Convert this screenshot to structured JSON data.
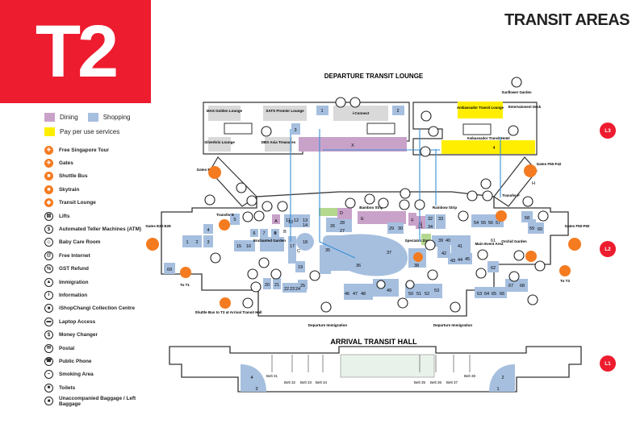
{
  "header": {
    "logo": "T2",
    "title": "TRANSIT AREAS"
  },
  "colors": {
    "brand": "#ed1c2e",
    "dining": "#c9a2c9",
    "shopping": "#a6bfdf",
    "pay": "#ffee00",
    "icon": "#f47b20",
    "path": "#3a8fd6"
  },
  "legend": {
    "dining": "Dining",
    "shopping": "Shopping",
    "pay": "Pay per use services",
    "items": [
      {
        "icon": "tour-icon",
        "label": "Free Singapore Tour"
      },
      {
        "icon": "plane-icon",
        "label": "Gates"
      },
      {
        "icon": "bus-icon",
        "label": "Shuttle Bus"
      },
      {
        "icon": "skytrain-icon",
        "label": "Skytrain"
      },
      {
        "icon": "transit-lounge-icon",
        "label": "Transit Lounge"
      },
      {
        "icon": "lift-icon",
        "label": "Lifts"
      },
      {
        "icon": "atm-icon",
        "label": "Automated Teller Machines (ATM)"
      },
      {
        "icon": "baby-care-icon",
        "label": "Baby Care Room"
      },
      {
        "icon": "internet-icon",
        "label": "Free Internet"
      },
      {
        "icon": "gst-refund-icon",
        "label": "GST Refund"
      },
      {
        "icon": "immigration-icon",
        "label": "Immigration"
      },
      {
        "icon": "info-icon",
        "label": "Information"
      },
      {
        "icon": "ishopchangi-icon",
        "label": "iShopChangi Collection Centre"
      },
      {
        "icon": "laptop-icon",
        "label": "Laptop Access"
      },
      {
        "icon": "money-changer-icon",
        "label": "Money Changer"
      },
      {
        "icon": "postal-icon",
        "label": "Postal"
      },
      {
        "icon": "phone-icon",
        "label": "Public Phone"
      },
      {
        "icon": "smoking-icon",
        "label": "Smoking Area"
      },
      {
        "icon": "toilet-icon",
        "label": "Toilets"
      },
      {
        "icon": "baggage-icon",
        "label": "Unaccompanied Baggage / Left Baggage"
      }
    ]
  },
  "map": {
    "departure_lounge": "DEPARTURE TRANSIT LOUNGE",
    "arrival_hall": "ARRIVAL TRANSIT HALL",
    "levels": {
      "l3": "L3",
      "l2": "L2",
      "l1": "L1"
    },
    "top_left": {
      "mas_golden": "MAS Golden Lounge",
      "sats_premier": "SATS Premier Lounge",
      "silverkris": "Silverkris Lounge",
      "dbs_asia": "DBS Asia Treasures",
      "iconnect": "i-Connect",
      "unit_1": "1",
      "unit_2": "2",
      "unit_3": "3",
      "unit_x": "X"
    },
    "top_right": {
      "sunflower": "Sunflower Garden",
      "ambassador_lounge": "Ambassador Transit Lounge",
      "entertainment": "Entertainment Deck",
      "ambassador_hotel": "Ambassador Transit Hotel",
      "unit_4": "4"
    },
    "labels": {
      "gates_e1": "Gates E1-E12",
      "gates_f50_f42": "Gates F50-F42",
      "gates_e20": "Gates E20-E28",
      "gates_f50_f60": "Gates F50-F60",
      "transfer_e": "Transfer E",
      "transfer_f": "Transfer F",
      "to_t1": "To T1",
      "to_t3": "To T3",
      "shuttle": "Shuttle Bus to T3 at Arrival Transit Hall",
      "dep_imm_1": "Departure Immigration",
      "dep_imm_2": "Departure Immigration",
      "enchanted": "Enchanted Garden",
      "orchid": "Orchid Garden",
      "bamboo": "Bamboo Strip",
      "rainbow": "Rainbow Strip",
      "spectator": "Spectator Zone",
      "main_event": "Main Event Area"
    },
    "units": {
      "u1": "1",
      "u2": "2",
      "u3": "3",
      "u4": "4",
      "u5": "5",
      "u6": "6",
      "u7": "7",
      "u8": "8",
      "u9": "9",
      "u10": "10",
      "u11": "11",
      "u12": "12",
      "u13": "13",
      "u14": "14",
      "u15": "15",
      "u16": "16",
      "u17": "17",
      "u18": "18",
      "u19": "19",
      "u20": "20",
      "u21": "21",
      "u22": "22",
      "u23": "23",
      "u24": "24",
      "u25": "25",
      "u26": "26",
      "u27": "27",
      "u28": "28",
      "u29": "29",
      "u30": "30",
      "u31": "31",
      "u32": "32",
      "u33": "33",
      "u34": "34",
      "u35": "35",
      "u36": "36",
      "u37": "37",
      "u38": "38",
      "u39": "39",
      "u40": "40",
      "u41": "41",
      "u42": "42",
      "u43": "43",
      "u44": "44",
      "u45": "45",
      "u46": "46",
      "u47": "47",
      "u48": "48",
      "u49": "49",
      "u50": "50",
      "u51": "51",
      "u52": "52",
      "u53": "53",
      "u54": "54",
      "u55": "55",
      "u56": "56",
      "u57": "57",
      "u58": "58",
      "u59": "59",
      "u60": "60",
      "u61": "61",
      "u62": "62",
      "u63": "63",
      "u64": "64",
      "u65": "65",
      "u66": "66",
      "u67": "67",
      "u68": "68",
      "u69": "69",
      "ua": "A",
      "ub": "B",
      "uc": "C",
      "ud": "D",
      "ue": "E",
      "uf": "F",
      "ug": "G",
      "uh": "H"
    },
    "arrival": {
      "a1": "1",
      "a2": "2",
      "a3": "3",
      "a4": "4",
      "belt31": "Belt 31",
      "belt32": "Belt 32",
      "belt33": "Belt 33",
      "belt34": "Belt 34",
      "belt35": "Belt 35",
      "belt36": "Belt 36",
      "belt37": "Belt 37",
      "belt38": "Belt 38"
    }
  }
}
